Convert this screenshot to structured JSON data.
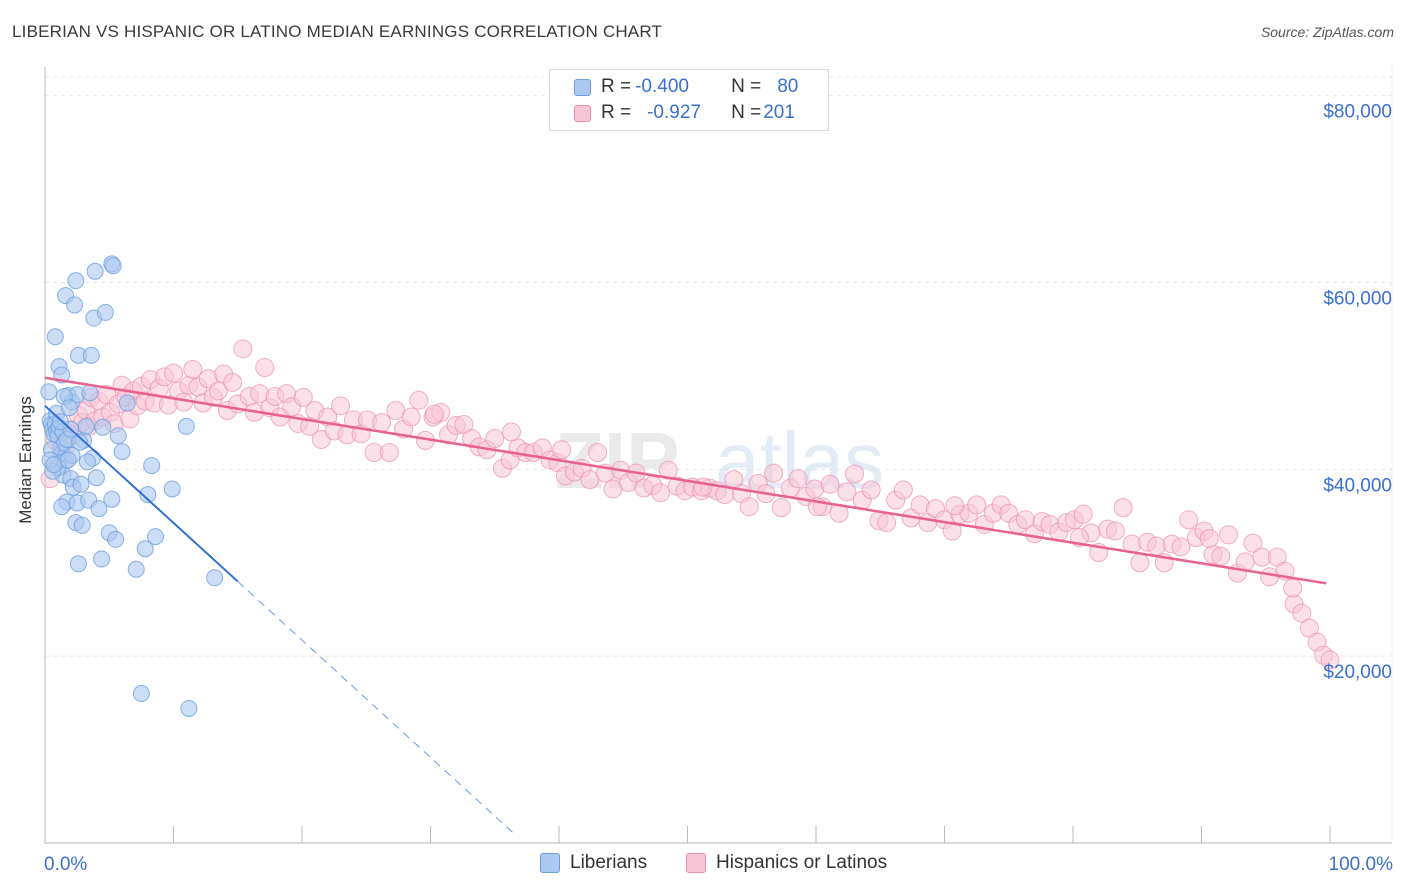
{
  "header": {
    "title": "LIBERIAN VS HISPANIC OR LATINO MEDIAN EARNINGS CORRELATION CHART",
    "source": "Source: ZipAtlas.com"
  },
  "stats_legend": {
    "series1": {
      "r_label": "R = ",
      "r_value": "-0.400",
      "n_label": "N = ",
      "n_value": "80"
    },
    "series2": {
      "r_label": "R = ",
      "r_value": "-0.927",
      "n_label": "N = ",
      "n_value": "201"
    }
  },
  "bottom_legend": {
    "series1": "Liberians",
    "series2": "Hispanics or Latinos"
  },
  "colors": {
    "blue_fill": "#aac8f0",
    "blue_stroke": "#6d9fe0",
    "blue_line": "#2f6fd6",
    "pink_fill": "#f7c6d6",
    "pink_stroke": "#ec8fb0",
    "pink_line": "#e8628f",
    "axis_text": "#3b6fcf",
    "grid": "#e5e5e5"
  },
  "watermark": {
    "part1": "ZIP",
    "part2": "atlas"
  },
  "chart_data": {
    "type": "scatter",
    "title": "LIBERIAN VS HISPANIC OR LATINO MEDIAN EARNINGS CORRELATION CHART",
    "xlabel": "",
    "ylabel": "Median Earnings",
    "xlim": [
      0,
      100
    ],
    "ylim": [
      0,
      82000
    ],
    "x_tick_labels": [
      {
        "value": 0,
        "label": "0.0%"
      },
      {
        "value": 100,
        "label": "100.0%"
      }
    ],
    "y_ticks": [
      {
        "value": 20000,
        "label": "$20,000"
      },
      {
        "value": 40000,
        "label": "$40,000"
      },
      {
        "value": 60000,
        "label": "$60,000"
      },
      {
        "value": 80000,
        "label": "$80,000"
      }
    ],
    "series": [
      {
        "name": "Liberians",
        "r": -0.4,
        "n": 80,
        "trend": {
          "x0": 0,
          "y0": 46800,
          "x1": 15,
          "y1": 28000,
          "dash_to_x": 36.5,
          "dash_to_y": 1000
        },
        "points": [
          [
            0.3,
            48.3
          ],
          [
            0.4,
            45.2
          ],
          [
            0.5,
            44.8
          ],
          [
            0.6,
            44.3
          ],
          [
            0.7,
            43.8
          ],
          [
            0.8,
            44.9
          ],
          [
            0.9,
            44.1
          ],
          [
            1.0,
            43.6
          ],
          [
            1.1,
            44.5
          ],
          [
            1.2,
            42.3
          ],
          [
            1.3,
            41.7
          ],
          [
            1.4,
            44.0
          ],
          [
            1.5,
            42.8
          ],
          [
            1.6,
            40.9
          ],
          [
            1.7,
            43.2
          ],
          [
            0.8,
            54.2
          ],
          [
            1.1,
            51.0
          ],
          [
            1.3,
            50.1
          ],
          [
            1.6,
            58.6
          ],
          [
            1.8,
            47.9
          ],
          [
            2.0,
            44.3
          ],
          [
            2.1,
            47.2
          ],
          [
            2.3,
            57.6
          ],
          [
            2.4,
            60.2
          ],
          [
            2.5,
            48.0
          ],
          [
            2.6,
            52.2
          ],
          [
            1.4,
            39.4
          ],
          [
            1.0,
            40.2
          ],
          [
            1.7,
            36.5
          ],
          [
            2.0,
            39.0
          ],
          [
            2.2,
            38.1
          ],
          [
            2.4,
            34.3
          ],
          [
            2.5,
            36.4
          ],
          [
            2.6,
            29.9
          ],
          [
            2.8,
            38.4
          ],
          [
            2.9,
            34.0
          ],
          [
            3.0,
            43.1
          ],
          [
            3.2,
            44.6
          ],
          [
            3.4,
            36.7
          ],
          [
            3.5,
            48.2
          ],
          [
            3.6,
            52.2
          ],
          [
            3.7,
            41.2
          ],
          [
            3.8,
            56.2
          ],
          [
            3.9,
            61.2
          ],
          [
            4.0,
            39.1
          ],
          [
            4.2,
            35.8
          ],
          [
            4.4,
            30.4
          ],
          [
            4.5,
            44.5
          ],
          [
            4.7,
            56.8
          ],
          [
            5.0,
            33.2
          ],
          [
            5.2,
            36.8
          ],
          [
            5.5,
            32.5
          ],
          [
            5.7,
            43.6
          ],
          [
            5.2,
            62.0
          ],
          [
            5.3,
            61.8
          ],
          [
            6.4,
            47.1
          ],
          [
            6.0,
            41.9
          ],
          [
            7.1,
            29.3
          ],
          [
            7.5,
            16.0
          ],
          [
            7.8,
            31.5
          ],
          [
            8.0,
            37.3
          ],
          [
            8.3,
            40.4
          ],
          [
            8.6,
            32.8
          ],
          [
            9.9,
            37.9
          ],
          [
            11.0,
            44.6
          ],
          [
            11.2,
            14.4
          ],
          [
            13.2,
            28.4
          ],
          [
            0.5,
            42.1
          ],
          [
            0.9,
            46.0
          ],
          [
            1.2,
            45.1
          ],
          [
            1.5,
            47.8
          ],
          [
            1.9,
            46.6
          ],
          [
            3.3,
            40.8
          ],
          [
            2.7,
            42.9
          ],
          [
            0.6,
            39.8
          ],
          [
            1.3,
            36.0
          ],
          [
            2.1,
            41.5
          ],
          [
            0.4,
            41.0
          ],
          [
            0.7,
            40.5
          ],
          [
            1.8,
            41.0
          ]
        ]
      },
      {
        "name": "Hispanics or Latinos",
        "r": -0.927,
        "n": 201,
        "trend": {
          "x0": 0,
          "y0": 49800,
          "x1": 99.7,
          "y1": 27800
        },
        "points": [
          [
            0.4,
            39.0
          ],
          [
            0.8,
            43.1
          ],
          [
            1.0,
            40.5
          ],
          [
            1.3,
            41.8
          ],
          [
            1.6,
            42.5
          ],
          [
            1.9,
            44.2
          ],
          [
            2.2,
            43.7
          ],
          [
            2.6,
            45.8
          ],
          [
            2.9,
            45.0
          ],
          [
            3.2,
            46.3
          ],
          [
            3.4,
            44.6
          ],
          [
            3.6,
            47.7
          ],
          [
            3.9,
            45.2
          ],
          [
            4.2,
            47.3
          ],
          [
            4.5,
            45.6
          ],
          [
            4.8,
            48.0
          ],
          [
            5.1,
            46.1
          ],
          [
            5.4,
            44.9
          ],
          [
            5.7,
            47.0
          ],
          [
            6.0,
            49.0
          ],
          [
            6.3,
            47.7
          ],
          [
            6.6,
            45.4
          ],
          [
            6.9,
            48.4
          ],
          [
            7.2,
            46.8
          ],
          [
            7.5,
            48.9
          ],
          [
            7.8,
            47.3
          ],
          [
            8.2,
            49.6
          ],
          [
            8.5,
            47.1
          ],
          [
            8.9,
            48.7
          ],
          [
            9.3,
            49.9
          ],
          [
            9.6,
            46.9
          ],
          [
            10.0,
            50.3
          ],
          [
            10.4,
            48.4
          ],
          [
            10.8,
            47.2
          ],
          [
            11.2,
            49.0
          ],
          [
            11.5,
            50.7
          ],
          [
            11.9,
            48.8
          ],
          [
            12.3,
            47.1
          ],
          [
            12.7,
            49.7
          ],
          [
            13.1,
            47.7
          ],
          [
            13.5,
            48.4
          ],
          [
            13.9,
            50.2
          ],
          [
            14.2,
            46.3
          ],
          [
            14.6,
            49.3
          ],
          [
            15.0,
            47.0
          ],
          [
            15.4,
            52.9
          ],
          [
            15.9,
            47.8
          ],
          [
            16.3,
            46.1
          ],
          [
            16.7,
            48.1
          ],
          [
            17.1,
            50.9
          ],
          [
            17.5,
            46.6
          ],
          [
            17.9,
            47.8
          ],
          [
            18.3,
            45.6
          ],
          [
            18.8,
            48.1
          ],
          [
            19.2,
            46.7
          ],
          [
            19.7,
            44.9
          ],
          [
            20.1,
            47.7
          ],
          [
            20.6,
            44.6
          ],
          [
            21.0,
            46.3
          ],
          [
            21.5,
            43.2
          ],
          [
            22.0,
            45.6
          ],
          [
            22.5,
            44.1
          ],
          [
            23.0,
            46.8
          ],
          [
            23.5,
            43.7
          ],
          [
            24.0,
            45.3
          ],
          [
            24.6,
            43.8
          ],
          [
            25.1,
            45.3
          ],
          [
            25.6,
            41.8
          ],
          [
            26.2,
            45.0
          ],
          [
            26.8,
            41.8
          ],
          [
            27.3,
            46.3
          ],
          [
            27.9,
            44.3
          ],
          [
            28.5,
            45.6
          ],
          [
            29.1,
            47.4
          ],
          [
            29.6,
            43.1
          ],
          [
            30.2,
            45.6
          ],
          [
            30.8,
            46.1
          ],
          [
            31.4,
            43.7
          ],
          [
            32.0,
            44.7
          ],
          [
            32.6,
            44.8
          ],
          [
            33.2,
            43.3
          ],
          [
            33.8,
            42.4
          ],
          [
            34.4,
            42.1
          ],
          [
            35.0,
            43.3
          ],
          [
            35.6,
            40.1
          ],
          [
            36.2,
            41.0
          ],
          [
            36.8,
            42.3
          ],
          [
            37.4,
            41.8
          ],
          [
            38.0,
            41.8
          ],
          [
            38.7,
            42.3
          ],
          [
            39.3,
            41.0
          ],
          [
            39.9,
            40.7
          ],
          [
            40.5,
            39.3
          ],
          [
            41.2,
            39.7
          ],
          [
            41.8,
            40.1
          ],
          [
            42.4,
            38.9
          ],
          [
            43.0,
            41.8
          ],
          [
            43.6,
            39.6
          ],
          [
            44.2,
            37.9
          ],
          [
            44.8,
            39.9
          ],
          [
            45.4,
            38.6
          ],
          [
            46.0,
            39.6
          ],
          [
            46.6,
            38.0
          ],
          [
            47.3,
            38.3
          ],
          [
            47.9,
            37.5
          ],
          [
            48.5,
            39.9
          ],
          [
            49.2,
            38.2
          ],
          [
            49.8,
            37.7
          ],
          [
            50.4,
            38.1
          ],
          [
            51.1,
            37.7
          ],
          [
            51.7,
            38.0
          ],
          [
            52.3,
            37.7
          ],
          [
            52.9,
            37.3
          ],
          [
            53.6,
            38.9
          ],
          [
            54.2,
            37.4
          ],
          [
            54.8,
            36.0
          ],
          [
            55.5,
            38.5
          ],
          [
            56.1,
            37.4
          ],
          [
            56.7,
            39.6
          ],
          [
            57.3,
            35.9
          ],
          [
            58.0,
            38.0
          ],
          [
            58.6,
            39.0
          ],
          [
            59.2,
            37.1
          ],
          [
            59.9,
            37.9
          ],
          [
            60.5,
            36.0
          ],
          [
            61.1,
            38.4
          ],
          [
            61.8,
            35.3
          ],
          [
            62.4,
            37.6
          ],
          [
            63.0,
            39.5
          ],
          [
            63.6,
            36.7
          ],
          [
            64.3,
            37.8
          ],
          [
            64.9,
            34.5
          ],
          [
            65.5,
            34.3
          ],
          [
            66.2,
            36.7
          ],
          [
            66.8,
            37.8
          ],
          [
            67.4,
            34.8
          ],
          [
            68.1,
            36.2
          ],
          [
            68.7,
            34.3
          ],
          [
            69.3,
            35.8
          ],
          [
            70.0,
            34.6
          ],
          [
            70.6,
            33.4
          ],
          [
            71.2,
            35.2
          ],
          [
            71.9,
            35.3
          ],
          [
            72.5,
            36.2
          ],
          [
            73.1,
            34.1
          ],
          [
            73.8,
            35.3
          ],
          [
            74.4,
            36.2
          ],
          [
            75.0,
            35.3
          ],
          [
            75.7,
            34.1
          ],
          [
            76.3,
            34.6
          ],
          [
            77.0,
            33.1
          ],
          [
            77.6,
            34.4
          ],
          [
            78.2,
            34.1
          ],
          [
            78.9,
            33.3
          ],
          [
            79.5,
            34.3
          ],
          [
            80.1,
            34.6
          ],
          [
            80.8,
            35.2
          ],
          [
            81.4,
            33.2
          ],
          [
            82.0,
            31.1
          ],
          [
            82.7,
            33.6
          ],
          [
            83.3,
            33.4
          ],
          [
            83.9,
            35.9
          ],
          [
            84.6,
            32.0
          ],
          [
            85.2,
            30.0
          ],
          [
            85.8,
            32.2
          ],
          [
            86.5,
            31.8
          ],
          [
            87.1,
            30.0
          ],
          [
            87.7,
            32.0
          ],
          [
            88.4,
            31.7
          ],
          [
            89.0,
            34.6
          ],
          [
            89.6,
            32.7
          ],
          [
            90.2,
            33.4
          ],
          [
            90.9,
            30.9
          ],
          [
            91.5,
            30.7
          ],
          [
            92.1,
            33.0
          ],
          [
            92.8,
            28.9
          ],
          [
            93.4,
            30.1
          ],
          [
            94.0,
            32.1
          ],
          [
            94.7,
            30.6
          ],
          [
            95.3,
            28.5
          ],
          [
            95.9,
            30.6
          ],
          [
            96.5,
            29.1
          ],
          [
            97.2,
            25.6
          ],
          [
            97.8,
            24.6
          ],
          [
            98.4,
            23.0
          ],
          [
            99.0,
            21.5
          ],
          [
            99.5,
            20.1
          ],
          [
            100.0,
            19.6
          ],
          [
            36.3,
            44.0
          ],
          [
            40.2,
            42.1
          ],
          [
            51.2,
            38.1
          ],
          [
            60.1,
            36.0
          ],
          [
            70.8,
            36.1
          ],
          [
            80.5,
            32.7
          ],
          [
            90.6,
            32.6
          ],
          [
            97.1,
            27.3
          ],
          [
            30.3,
            45.9
          ]
        ]
      }
    ]
  }
}
